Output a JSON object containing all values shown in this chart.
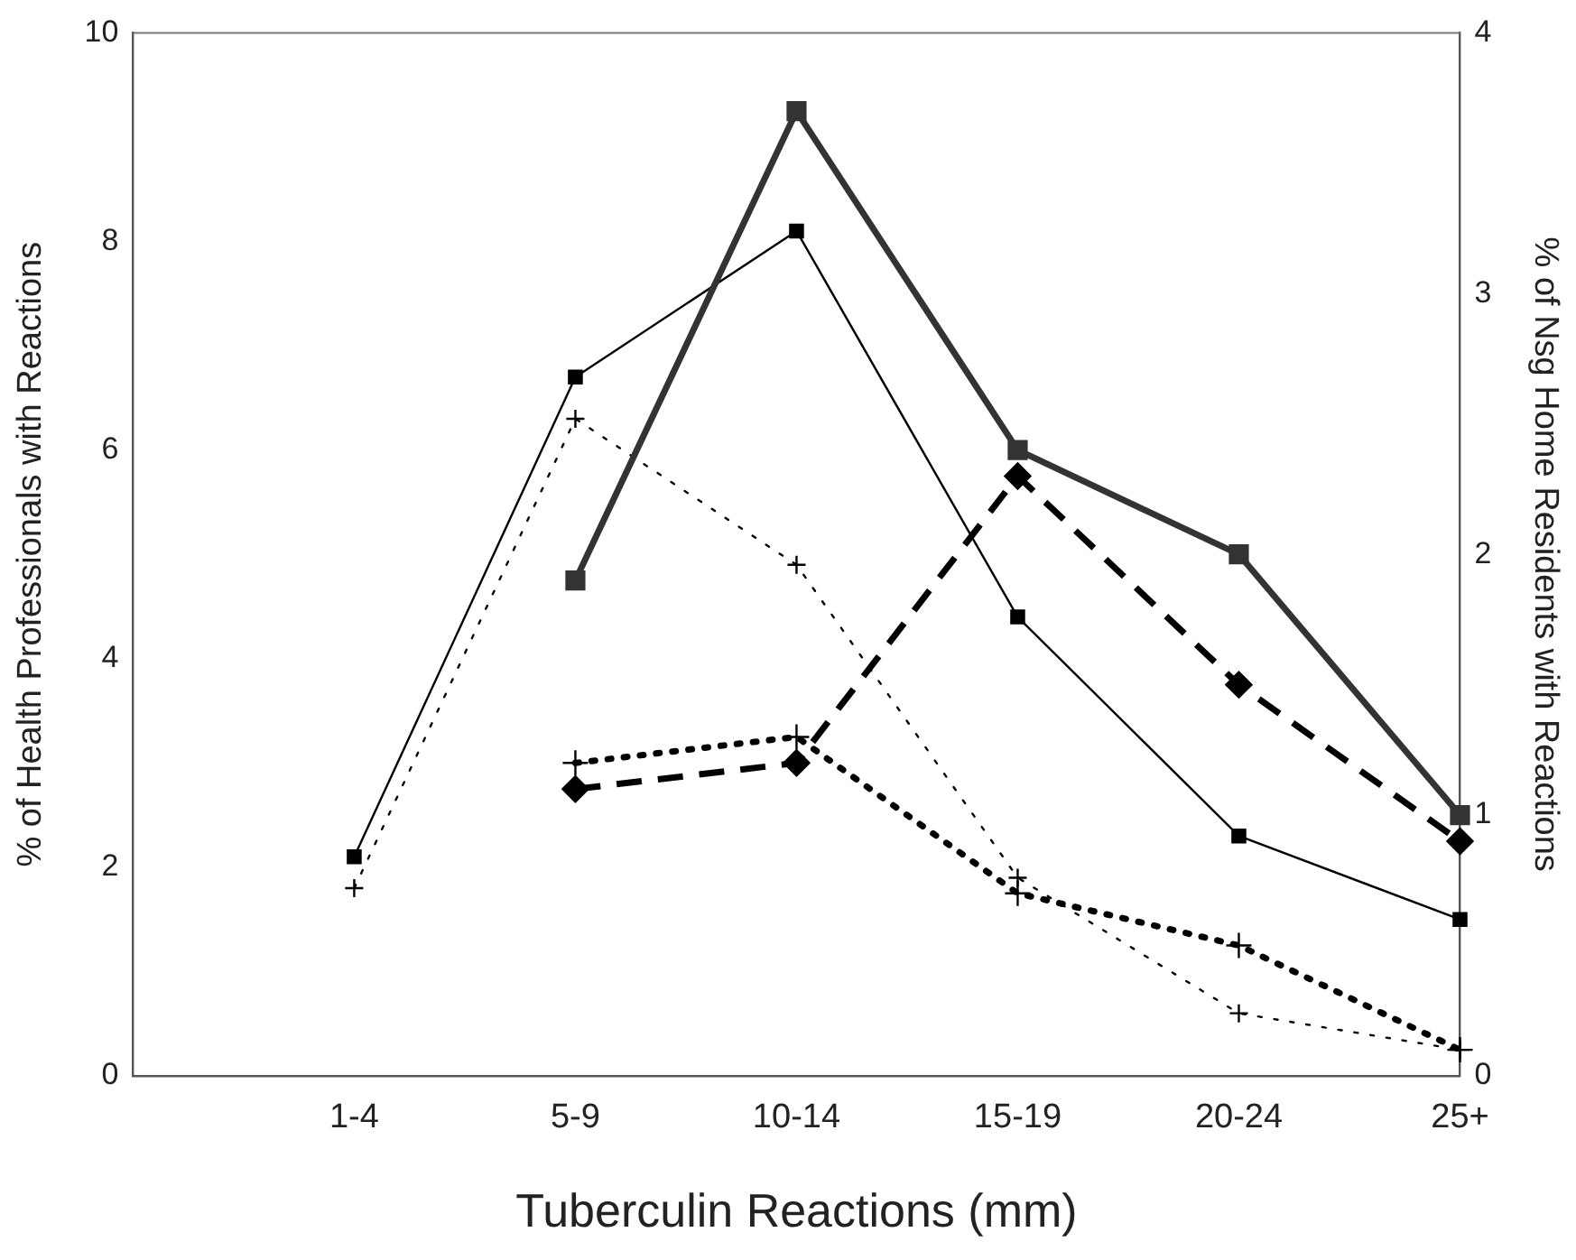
{
  "chart_data": {
    "type": "line",
    "xlabel": "Tuberculin Reactions (mm)",
    "ylabel": "% of Health Professionals with Reactions",
    "y2label": "% of Nsg Home Residents with Reactions",
    "categories": [
      "1-4",
      "5-9",
      "10-14",
      "15-19",
      "20-24",
      "25+"
    ],
    "series": [
      {
        "color": "#000000",
        "values": [
          2.1,
          6.7,
          8.1,
          4.4,
          2.3,
          1.5
        ],
        "line_style": "solid",
        "marker": "square"
      },
      {
        "color": "#000000",
        "values": [
          1.8,
          6.3,
          4.9,
          1.9,
          0.6,
          0.25
        ],
        "line_style": "dotted",
        "marker": "cross"
      },
      {
        "color": "#333333",
        "axis": "y2",
        "values": [
          null,
          1.9,
          3.7,
          2.4,
          2.0,
          1.0
        ],
        "line_style": "solid",
        "marker": "square"
      },
      {
        "color": "#000000",
        "axis": "y2",
        "values": [
          null,
          1.1,
          1.2,
          2.3,
          1.5,
          0.9
        ],
        "line_style": "dashed",
        "marker": "diamond"
      },
      {
        "color": "#000000",
        "axis": "y2",
        "values": [
          null,
          1.2,
          1.3,
          0.7,
          0.5,
          0.1
        ],
        "line_style": "dotted",
        "marker": "cross"
      }
    ],
    "ylim": [
      0,
      10
    ],
    "yticks": [
      0,
      2,
      4,
      6,
      8,
      10
    ],
    "y2lim": [
      0,
      4
    ],
    "y2ticks": [
      0,
      1,
      2,
      3,
      4
    ],
    "grid": false,
    "legend": false
  }
}
